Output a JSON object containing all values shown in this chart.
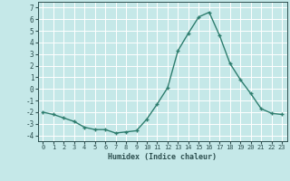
{
  "x": [
    0,
    1,
    2,
    3,
    4,
    5,
    6,
    7,
    8,
    9,
    10,
    11,
    12,
    13,
    14,
    15,
    16,
    17,
    18,
    19,
    20,
    21,
    22,
    23
  ],
  "y": [
    -2.0,
    -2.2,
    -2.5,
    -2.8,
    -3.3,
    -3.5,
    -3.5,
    -3.8,
    -3.7,
    -3.6,
    -2.6,
    -1.3,
    0.1,
    3.3,
    4.8,
    6.2,
    6.6,
    4.6,
    2.2,
    0.8,
    -0.4,
    -1.7,
    -2.1,
    -2.2
  ],
  "xlabel": "Humidex (Indice chaleur)",
  "xlim": [
    -0.5,
    23.5
  ],
  "ylim": [
    -4.5,
    7.5
  ],
  "yticks": [
    -4,
    -3,
    -2,
    -1,
    0,
    1,
    2,
    3,
    4,
    5,
    6,
    7
  ],
  "xticks": [
    0,
    1,
    2,
    3,
    4,
    5,
    6,
    7,
    8,
    9,
    10,
    11,
    12,
    13,
    14,
    15,
    16,
    17,
    18,
    19,
    20,
    21,
    22,
    23
  ],
  "line_color": "#2e7d6e",
  "marker": "+",
  "bg_color": "#c5e8e8",
  "grid_color": "#ffffff",
  "font_color": "#2e5050",
  "tick_color": "#2e5050",
  "spine_color": "#2e5050"
}
